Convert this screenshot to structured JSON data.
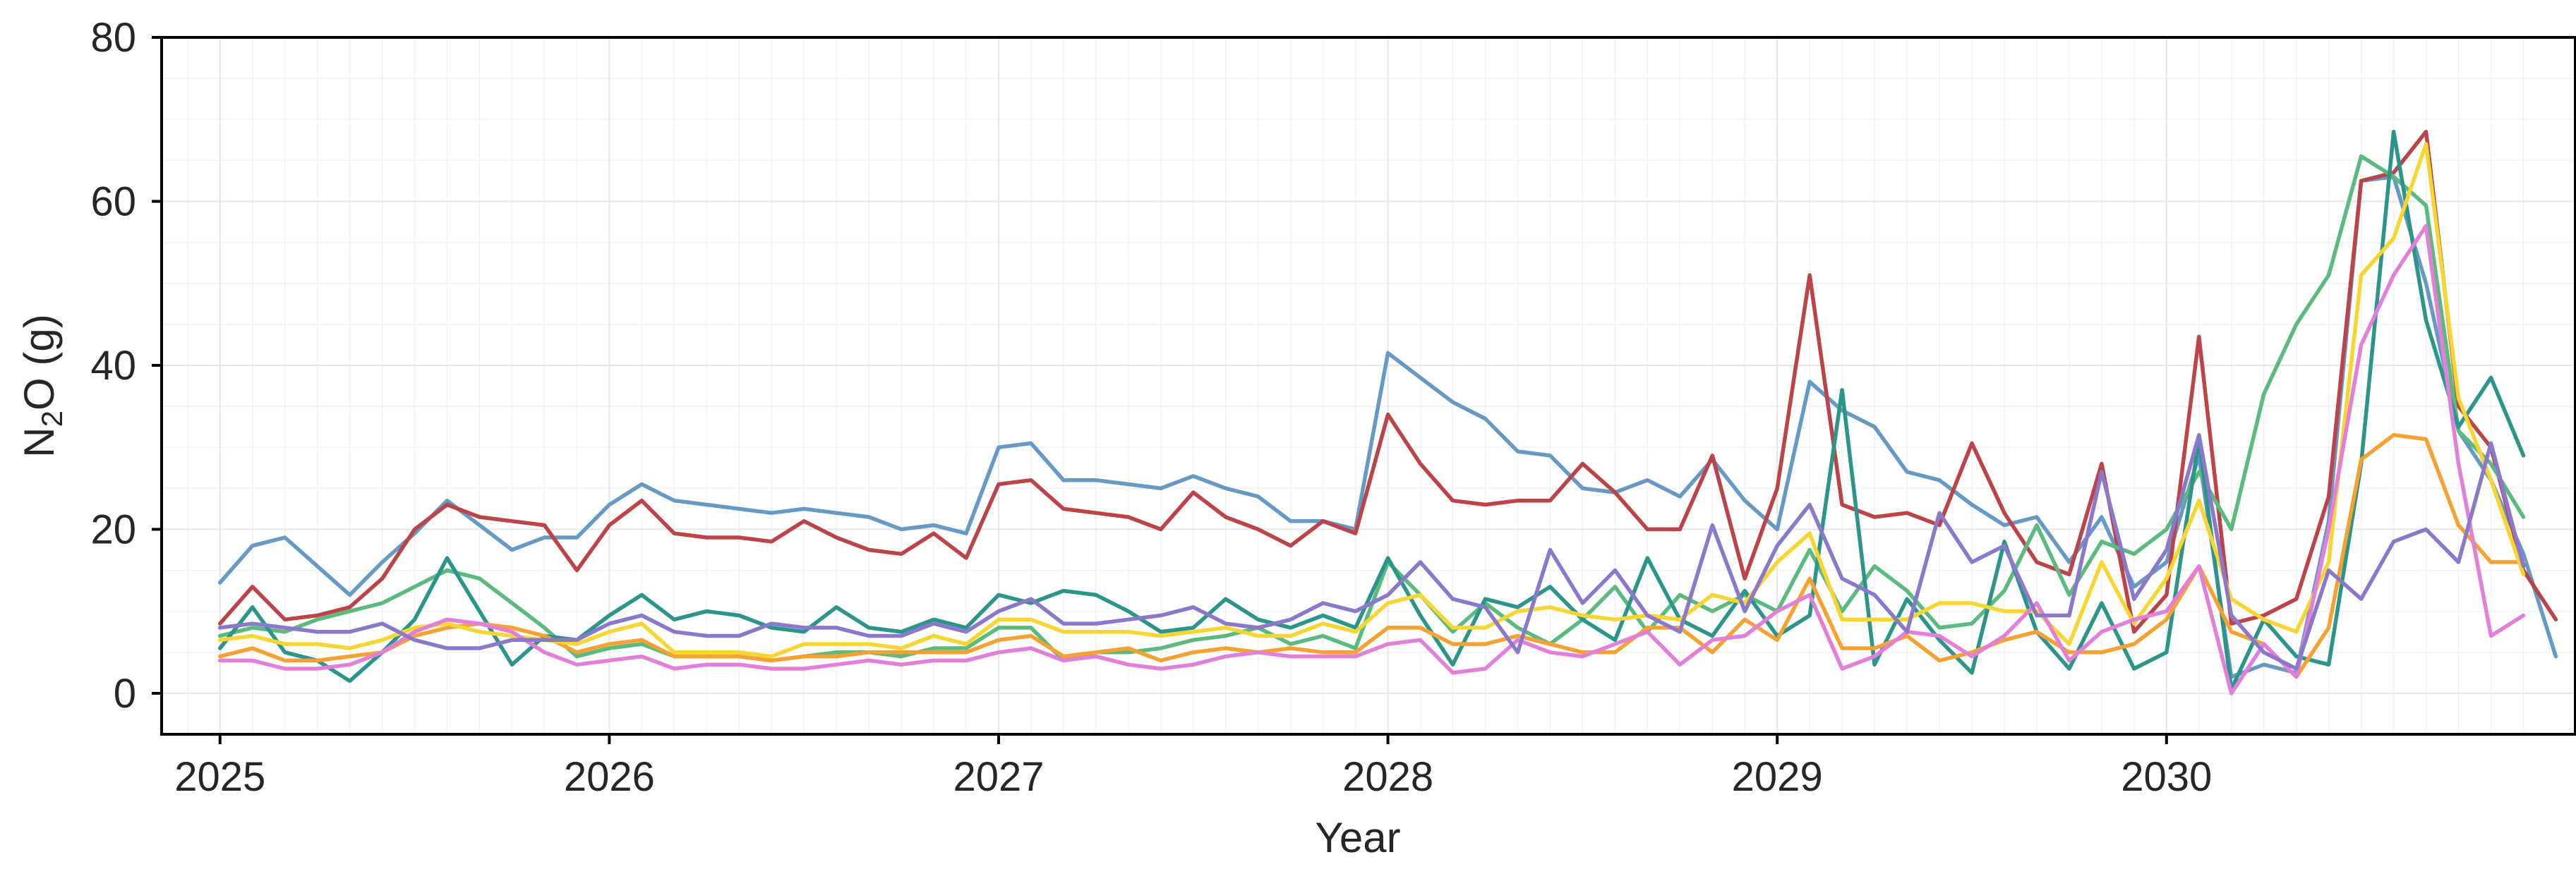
{
  "chart_data": {
    "type": "line",
    "xlabel": "Year",
    "ylabel_main": "N",
    "ylabel_sub": "2",
    "ylabel_rest": "O (g)",
    "x_ticks": [
      "2025",
      "2026",
      "2027",
      "2028",
      "2029",
      "2030"
    ],
    "y_ticks": [
      "0",
      "20",
      "40",
      "60",
      "80"
    ],
    "x_start": "2025-01",
    "x_step": "month",
    "xlim": [
      2024.85,
      2031.05
    ],
    "ylim": [
      -5,
      80
    ],
    "grid": true,
    "legend": "none",
    "series": [
      {
        "color": "#6699c4",
        "values": [
          13.5,
          18,
          19,
          15.5,
          12,
          16,
          19.5,
          23.5,
          20.5,
          17.5,
          19,
          19,
          23,
          25.5,
          23.5,
          23,
          22.5,
          22,
          22.5,
          22,
          21.5,
          20,
          20.5,
          19.5,
          30,
          30.5,
          26,
          26,
          25.5,
          25,
          26.5,
          25,
          24,
          21,
          21,
          20,
          41.5,
          38.5,
          35.5,
          33.5,
          29.5,
          29,
          25,
          24.5,
          26,
          24,
          28.5,
          23.5,
          20,
          38,
          34.5,
          32.5,
          27,
          26,
          23,
          20.5,
          21.5,
          16,
          21.5,
          13,
          16,
          29,
          2,
          3.5,
          2.5,
          21,
          62.5,
          63,
          50,
          32,
          26,
          17,
          4.5
        ]
      },
      {
        "color": "#bc4448",
        "values": [
          8.5,
          13,
          9,
          9.5,
          10.5,
          14,
          20,
          23,
          21.5,
          21,
          20.5,
          15,
          20.5,
          23.5,
          19.5,
          19,
          19,
          18.5,
          21,
          19,
          17.5,
          17,
          19.5,
          16.5,
          25.5,
          26,
          22.5,
          22,
          21.5,
          20,
          24.5,
          21.5,
          20,
          18,
          21,
          19.5,
          34,
          28,
          23.5,
          23,
          23.5,
          23.5,
          28,
          24.5,
          20,
          20,
          29,
          14,
          25,
          51,
          23,
          21.5,
          22,
          20.5,
          30.5,
          22,
          16,
          14.5,
          28,
          7.5,
          12,
          43.5,
          8.5,
          9.5,
          11.5,
          24,
          62.5,
          63.5,
          68.5,
          35,
          30,
          15,
          9
        ]
      },
      {
        "color": "#5bba7e",
        "values": [
          7,
          8,
          7.5,
          9,
          10,
          11,
          13,
          15,
          14,
          11,
          8,
          4.5,
          5.5,
          6,
          4.5,
          4.5,
          4.5,
          4,
          4.5,
          5,
          5,
          4.5,
          5.5,
          5.5,
          8,
          8,
          4,
          5,
          5,
          5.5,
          6.5,
          7,
          8,
          6,
          7,
          5.5,
          16,
          12,
          7.5,
          11,
          8,
          6,
          9,
          13,
          7.5,
          12,
          10,
          12,
          10,
          17.5,
          10,
          15.5,
          12.5,
          8,
          8.5,
          12.5,
          20.5,
          12,
          18.5,
          17,
          20,
          27,
          20,
          36.5,
          45,
          51,
          65.5,
          63,
          59.5,
          32,
          28,
          21.5
        ]
      },
      {
        "color": "#2b958a",
        "values": [
          5.5,
          10.5,
          5,
          4,
          1.5,
          5,
          9,
          16.5,
          10,
          3.5,
          7,
          6.5,
          9.5,
          12,
          9,
          10,
          9.5,
          8,
          7.5,
          10.5,
          8,
          7.5,
          9,
          8,
          12,
          11,
          12.5,
          12,
          10,
          7.5,
          8,
          11.5,
          9,
          8,
          9.5,
          8,
          16.5,
          9.5,
          3.5,
          11.5,
          10.5,
          13,
          9,
          6.5,
          16.5,
          9,
          7,
          12.5,
          7,
          9.5,
          37,
          3.5,
          11.5,
          6.5,
          2.5,
          18.5,
          7.5,
          3,
          11,
          3,
          5,
          31,
          0.5,
          9,
          4.5,
          3.5,
          28,
          68.5,
          45.5,
          32.5,
          38.5,
          29
        ]
      },
      {
        "color": "#f5a232",
        "values": [
          4.5,
          5.5,
          4,
          4,
          4.5,
          5,
          7,
          8,
          8.5,
          8,
          7,
          5,
          6,
          6.5,
          4.5,
          4.5,
          4.5,
          4,
          4.5,
          4.5,
          5,
          5,
          5,
          5,
          6.5,
          7,
          4.5,
          5,
          5.5,
          4,
          5,
          5.5,
          5,
          5.5,
          5,
          5,
          8,
          8,
          6,
          6,
          7,
          6,
          5,
          5,
          8,
          8,
          5,
          9,
          6.5,
          14,
          5.5,
          5.5,
          7,
          4,
          5,
          6.5,
          7.5,
          5,
          5,
          6,
          9,
          15.5,
          7.5,
          6,
          2,
          8,
          28.5,
          31.5,
          31,
          20.5,
          16,
          16
        ]
      },
      {
        "color": "#f8d631",
        "values": [
          6.5,
          7,
          6,
          6,
          5.5,
          6.5,
          8,
          8.5,
          7.5,
          7,
          6.5,
          6,
          7.5,
          8.5,
          5,
          5,
          5,
          4.5,
          6,
          6,
          6,
          5.5,
          7,
          6,
          9,
          9,
          7.5,
          7.5,
          7.5,
          7,
          7.5,
          8,
          7,
          7,
          8.5,
          7.5,
          11,
          12,
          8,
          8,
          10,
          10.5,
          9.5,
          9,
          9.5,
          9,
          12,
          11,
          16,
          19.5,
          9,
          9,
          9,
          11,
          11,
          10,
          10,
          6,
          16,
          8.5,
          14,
          23.5,
          11.5,
          9,
          7.5,
          16,
          51,
          55.5,
          67,
          36,
          26,
          14.5
        ]
      },
      {
        "color": "#e17fd9",
        "values": [
          4,
          4,
          3,
          3,
          3.5,
          5,
          7.5,
          9,
          8.5,
          7.5,
          5,
          3.5,
          4,
          4.5,
          3,
          3.5,
          3.5,
          3,
          3,
          3.5,
          4,
          3.5,
          4,
          4,
          5,
          5.5,
          4,
          4.5,
          3.5,
          3,
          3.5,
          4.5,
          5,
          4.5,
          4.5,
          4.5,
          6,
          6.5,
          2.5,
          3,
          6.5,
          5,
          4.5,
          6,
          7.5,
          3.5,
          6.5,
          7,
          10,
          12,
          3,
          4.5,
          7.5,
          7,
          4.5,
          7,
          11,
          4,
          7.5,
          9,
          10,
          15.5,
          0,
          6,
          2,
          20,
          42.5,
          51,
          57,
          28,
          7,
          9.5
        ]
      },
      {
        "color": "#8b78cb",
        "values": [
          8,
          8.5,
          8,
          7.5,
          7.5,
          8.5,
          6.5,
          5.5,
          5.5,
          6.5,
          6.5,
          6.5,
          8.5,
          9.5,
          7.5,
          7,
          7,
          8.5,
          8,
          8,
          7,
          7,
          8.5,
          7.5,
          10,
          11.5,
          8.5,
          8.5,
          9,
          9.5,
          10.5,
          8.5,
          8,
          9,
          11,
          10,
          12,
          16,
          11.5,
          10.5,
          5,
          17.5,
          11,
          15,
          9.5,
          7.5,
          20.5,
          10,
          18,
          23,
          14,
          12,
          7.5,
          22,
          16,
          18,
          9.5,
          9.5,
          27,
          11.5,
          17.5,
          31.5,
          9.5,
          5,
          3,
          15,
          11.5,
          18.5,
          20,
          16,
          30.5,
          15.5
        ]
      }
    ]
  }
}
